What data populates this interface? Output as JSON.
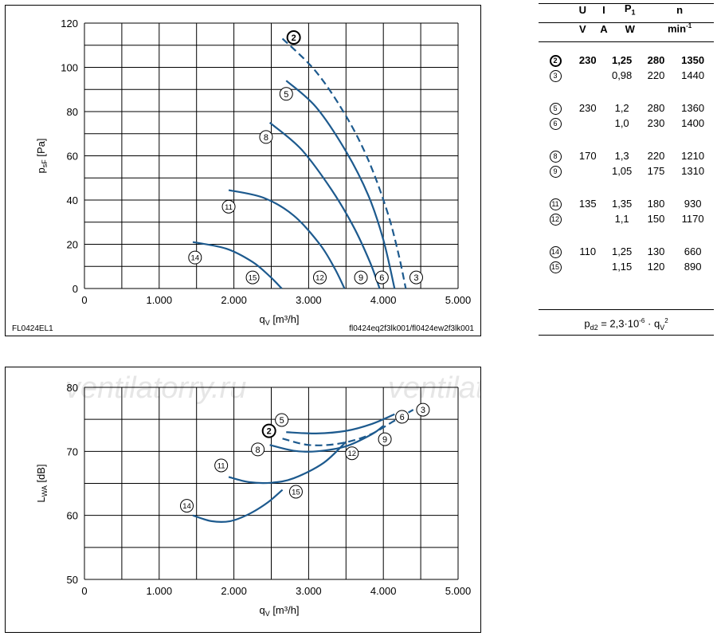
{
  "chart_data": [
    {
      "type": "line",
      "ylabel_main": "p",
      "ylabel_sub": "sF",
      "ylabel_unit": " [Pa]",
      "xlabel_main": "q",
      "xlabel_sub": "V",
      "xlabel_unit": " [m³/h]",
      "xlim": [
        0,
        5000
      ],
      "ylim": [
        0,
        120
      ],
      "x_ticks": [
        "0",
        "1.000",
        "2.000",
        "3.000",
        "4.000",
        "5.000"
      ],
      "y_ticks": [
        "0",
        "20",
        "40",
        "60",
        "80",
        "100",
        "120"
      ],
      "grid": true,
      "footer_left": "FL0424EL1",
      "footer_right": "fl0424eq2f3lk001/fl0424ew2f3lk001",
      "series": [
        {
          "id": "2",
          "dashed": true,
          "points": [
            [
              2650,
              113
            ],
            [
              3100,
              98
            ],
            [
              3500,
              78
            ],
            [
              3800,
              58
            ],
            [
              4050,
              35
            ],
            [
              4200,
              16
            ],
            [
              4300,
              0
            ]
          ]
        },
        {
          "id": "5",
          "dashed": false,
          "points": [
            [
              2700,
              94
            ],
            [
              3100,
              82
            ],
            [
              3500,
              62
            ],
            [
              3800,
              42
            ],
            [
              4000,
              22
            ],
            [
              4150,
              0
            ]
          ]
        },
        {
          "id": "8",
          "dashed": false,
          "points": [
            [
              2480,
              75
            ],
            [
              2900,
              63
            ],
            [
              3300,
              45
            ],
            [
              3600,
              28
            ],
            [
              3820,
              12
            ],
            [
              3950,
              0
            ]
          ]
        },
        {
          "id": "11",
          "dashed": false,
          "points": [
            [
              1930,
              44.5
            ],
            [
              2400,
              41
            ],
            [
              2800,
              33
            ],
            [
              3150,
              20
            ],
            [
              3350,
              9
            ],
            [
              3480,
              0
            ]
          ]
        },
        {
          "id": "14",
          "dashed": false,
          "points": [
            [
              1450,
              21
            ],
            [
              1900,
              18
            ],
            [
              2250,
              12
            ],
            [
              2480,
              5.5
            ],
            [
              2640,
              0
            ]
          ]
        }
      ],
      "labels": [
        {
          "text": "2",
          "bold": true,
          "x": 2800,
          "y": 113.5
        },
        {
          "text": "5",
          "x": 2700,
          "y": 88
        },
        {
          "text": "8",
          "x": 2430,
          "y": 68.5
        },
        {
          "text": "11",
          "x": 1930,
          "y": 37
        },
        {
          "text": "14",
          "x": 1480,
          "y": 14
        },
        {
          "text": "15",
          "x": 2250,
          "y": 5
        },
        {
          "text": "12",
          "x": 3150,
          "y": 5
        },
        {
          "text": "9",
          "x": 3700,
          "y": 5
        },
        {
          "text": "6",
          "x": 3980,
          "y": 5
        },
        {
          "text": "3",
          "x": 4440,
          "y": 5
        }
      ]
    },
    {
      "type": "line",
      "ylabel_main": "L",
      "ylabel_sub": "WA",
      "ylabel_unit": " [dB]",
      "xlabel_main": "q",
      "xlabel_sub": "V",
      "xlabel_unit": " [m³/h]",
      "xlim": [
        0,
        5000
      ],
      "ylim": [
        50,
        80
      ],
      "x_ticks": [
        "0",
        "1.000",
        "2.000",
        "3.000",
        "4.000",
        "5.000"
      ],
      "y_ticks": [
        "50",
        "60",
        "70",
        "80"
      ],
      "grid": true,
      "series": [
        {
          "id": "2",
          "dashed": true,
          "points": [
            [
              2650,
              72
            ],
            [
              3000,
              71
            ],
            [
              3400,
              71.2
            ],
            [
              3800,
              72.5
            ],
            [
              4150,
              74.8
            ],
            [
              4400,
              76.5
            ]
          ]
        },
        {
          "id": "5",
          "dashed": false,
          "points": [
            [
              2700,
              73
            ],
            [
              3100,
              72.8
            ],
            [
              3500,
              73.2
            ],
            [
              3850,
              74.3
            ],
            [
              4150,
              75.8
            ]
          ]
        },
        {
          "id": "8",
          "dashed": false,
          "points": [
            [
              2480,
              71
            ],
            [
              2800,
              70.1
            ],
            [
              3100,
              70
            ],
            [
              3500,
              70.8
            ],
            [
              3850,
              72.7
            ],
            [
              4000,
              74
            ]
          ]
        },
        {
          "id": "11",
          "dashed": false,
          "points": [
            [
              1930,
              66
            ],
            [
              2200,
              65.2
            ],
            [
              2500,
              65.1
            ],
            [
              2800,
              65.8
            ],
            [
              3200,
              68.2
            ],
            [
              3500,
              71.5
            ]
          ]
        },
        {
          "id": "14",
          "dashed": false,
          "points": [
            [
              1450,
              60
            ],
            [
              1700,
              59.1
            ],
            [
              1950,
              59.1
            ],
            [
              2200,
              60.2
            ],
            [
              2450,
              62
            ],
            [
              2650,
              64
            ]
          ]
        }
      ],
      "labels": [
        {
          "text": "5",
          "x": 2640,
          "y": 74.9
        },
        {
          "text": "2",
          "bold": true,
          "x": 2470,
          "y": 73.2
        },
        {
          "text": "8",
          "x": 2320,
          "y": 70.3
        },
        {
          "text": "11",
          "x": 1830,
          "y": 67.8
        },
        {
          "text": "14",
          "x": 1370,
          "y": 61.5
        },
        {
          "text": "15",
          "x": 2830,
          "y": 63.7
        },
        {
          "text": "12",
          "x": 3580,
          "y": 69.7
        },
        {
          "text": "9",
          "x": 4020,
          "y": 71.9
        },
        {
          "text": "6",
          "x": 4250,
          "y": 75.4
        },
        {
          "text": "3",
          "x": 4530,
          "y": 76.5
        }
      ]
    }
  ],
  "specs": {
    "headers": {
      "u": "U",
      "i": "I",
      "p_main": "P",
      "p_sub": "1",
      "n": "n"
    },
    "units": {
      "u": "V",
      "i": "A",
      "p": "W",
      "n_main": "min",
      "n_sup": "-1"
    },
    "rows": [
      {
        "id": "2",
        "bold": true,
        "u": "230",
        "i": "1,25",
        "p": "280",
        "n": "1350"
      },
      {
        "id": "3",
        "u": "",
        "i": "0,98",
        "p": "220",
        "n": "1440"
      },
      {
        "id": "5",
        "u": "230",
        "i": "1,2",
        "p": "280",
        "n": "1360"
      },
      {
        "id": "6",
        "u": "",
        "i": "1,0",
        "p": "230",
        "n": "1400"
      },
      {
        "id": "8",
        "u": "170",
        "i": "1,3",
        "p": "220",
        "n": "1210"
      },
      {
        "id": "9",
        "u": "",
        "i": "1,05",
        "p": "175",
        "n": "1310"
      },
      {
        "id": "11",
        "u": "135",
        "i": "1,35",
        "p": "180",
        "n": "930"
      },
      {
        "id": "12",
        "u": "",
        "i": "1,1",
        "p": "150",
        "n": "1170"
      },
      {
        "id": "14",
        "u": "110",
        "i": "1,25",
        "p": "130",
        "n": "660"
      },
      {
        "id": "15",
        "u": "",
        "i": "1,15",
        "p": "120",
        "n": "890"
      }
    ],
    "formula": {
      "p": "p",
      "p_sub": "d2",
      "eq": " = 2,3·10",
      "exp": "-6",
      "mid": " · q",
      "q_sub": "V",
      "sq": "2"
    }
  },
  "watermark": [
    "ventilatorry.ru",
    "ventilatorry.ru"
  ],
  "colors": {
    "curve": "#1d5a8e",
    "grid": "#000000"
  }
}
